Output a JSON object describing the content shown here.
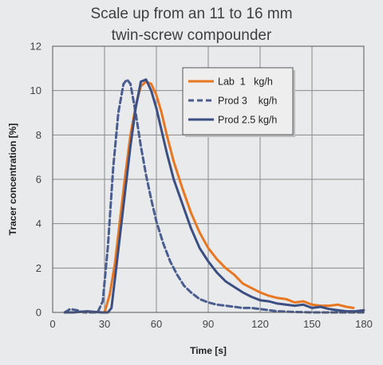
{
  "chart_data": {
    "type": "line",
    "title": [
      "Scale up from an 11 to 16 mm",
      "twin-screw compounder"
    ],
    "xlabel": "Time [s]",
    "ylabel": "Tracer concentration [%]",
    "xlim": [
      0,
      180
    ],
    "ylim": [
      0,
      12
    ],
    "xticks": [
      0,
      30,
      60,
      90,
      120,
      150,
      180
    ],
    "yticks": [
      0,
      2,
      4,
      6,
      8,
      10,
      12
    ],
    "grid": true,
    "legend_position": "top-right",
    "series": [
      {
        "name": "Lab  1   kg/h",
        "color": "#e87722",
        "dash": "solid",
        "points": [
          [
            30,
            0
          ],
          [
            33,
            0.8
          ],
          [
            36,
            2.2
          ],
          [
            39,
            4.2
          ],
          [
            42,
            6.2
          ],
          [
            45,
            8.0
          ],
          [
            48,
            9.3
          ],
          [
            51,
            10.2
          ],
          [
            54,
            10.4
          ],
          [
            57,
            10.3
          ],
          [
            60,
            9.8
          ],
          [
            63,
            9.0
          ],
          [
            66,
            8.0
          ],
          [
            70,
            6.8
          ],
          [
            75,
            5.6
          ],
          [
            80,
            4.5
          ],
          [
            85,
            3.6
          ],
          [
            90,
            2.9
          ],
          [
            95,
            2.4
          ],
          [
            100,
            2.0
          ],
          [
            105,
            1.7
          ],
          [
            110,
            1.3
          ],
          [
            115,
            1.1
          ],
          [
            120,
            0.9
          ],
          [
            125,
            0.75
          ],
          [
            130,
            0.65
          ],
          [
            135,
            0.6
          ],
          [
            140,
            0.45
          ],
          [
            145,
            0.5
          ],
          [
            150,
            0.35
          ],
          [
            155,
            0.3
          ],
          [
            160,
            0.3
          ],
          [
            165,
            0.35
          ],
          [
            170,
            0.25
          ],
          [
            174,
            0.2
          ]
        ]
      },
      {
        "name": "Prod 3    kg/h",
        "color": "#4a5d8f",
        "dash": "dashed",
        "points": [
          [
            7,
            0
          ],
          [
            10,
            0.15
          ],
          [
            14,
            0.1
          ],
          [
            18,
            0
          ],
          [
            26,
            0
          ],
          [
            29,
            0.5
          ],
          [
            32,
            3.0
          ],
          [
            35,
            6.5
          ],
          [
            38,
            9.0
          ],
          [
            41,
            10.3
          ],
          [
            43,
            10.5
          ],
          [
            45,
            10.3
          ],
          [
            48,
            9.0
          ],
          [
            51,
            7.5
          ],
          [
            54,
            6.2
          ],
          [
            57,
            5.1
          ],
          [
            60,
            4.1
          ],
          [
            64,
            3.1
          ],
          [
            68,
            2.3
          ],
          [
            72,
            1.7
          ],
          [
            76,
            1.2
          ],
          [
            80,
            0.9
          ],
          [
            85,
            0.6
          ],
          [
            90,
            0.45
          ],
          [
            95,
            0.35
          ],
          [
            100,
            0.3
          ],
          [
            105,
            0.25
          ],
          [
            110,
            0.2
          ],
          [
            115,
            0.2
          ],
          [
            120,
            0.15
          ],
          [
            125,
            0.1
          ],
          [
            130,
            0.05
          ],
          [
            140,
            0.02
          ],
          [
            150,
            0
          ],
          [
            160,
            0
          ],
          [
            170,
            0
          ],
          [
            180,
            0
          ]
        ]
      },
      {
        "name": "Prod 2.5 kg/h",
        "color": "#3c4f82",
        "dash": "solid",
        "points": [
          [
            7,
            0
          ],
          [
            12,
            0
          ],
          [
            20,
            0.05
          ],
          [
            28,
            0
          ],
          [
            32,
            0
          ],
          [
            34,
            0.2
          ],
          [
            36,
            1.5
          ],
          [
            39,
            3.5
          ],
          [
            42,
            5.5
          ],
          [
            45,
            7.5
          ],
          [
            48,
            9.2
          ],
          [
            51,
            10.4
          ],
          [
            54,
            10.5
          ],
          [
            57,
            10.0
          ],
          [
            60,
            9.2
          ],
          [
            63,
            8.2
          ],
          [
            66,
            7.2
          ],
          [
            70,
            6.0
          ],
          [
            75,
            4.9
          ],
          [
            80,
            3.8
          ],
          [
            85,
            2.9
          ],
          [
            90,
            2.3
          ],
          [
            95,
            1.8
          ],
          [
            100,
            1.4
          ],
          [
            105,
            1.15
          ],
          [
            110,
            0.9
          ],
          [
            115,
            0.7
          ],
          [
            120,
            0.55
          ],
          [
            125,
            0.5
          ],
          [
            130,
            0.4
          ],
          [
            135,
            0.35
          ],
          [
            140,
            0.3
          ],
          [
            145,
            0.35
          ],
          [
            150,
            0.2
          ],
          [
            155,
            0.25
          ],
          [
            160,
            0.15
          ],
          [
            165,
            0.1
          ],
          [
            170,
            0.05
          ],
          [
            175,
            0.05
          ],
          [
            180,
            0.1
          ]
        ]
      }
    ]
  }
}
